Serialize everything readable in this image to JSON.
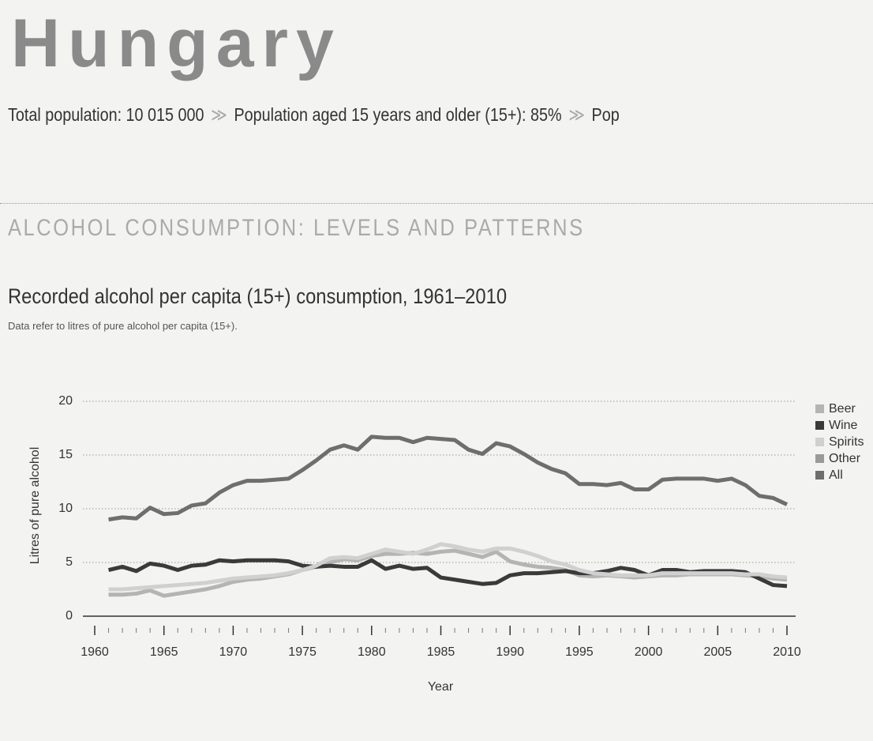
{
  "header": {
    "title": "Hungary",
    "stats": [
      "Total population: 10 015 000",
      "Population aged 15 years and older (15+): 85%",
      "Pop"
    ]
  },
  "section_title": "ALCOHOL CONSUMPTION: LEVELS AND PATTERNS",
  "chart_data": {
    "type": "line",
    "title": "Recorded alcohol per capita (15+) consumption, 1961–2010",
    "subtitle": "Data refer to litres of pure alcohol per capita (15+).",
    "x_label": "Year",
    "y_label": "Litres of pure alcohol",
    "x": [
      1961,
      1962,
      1963,
      1964,
      1965,
      1966,
      1967,
      1968,
      1969,
      1970,
      1971,
      1972,
      1973,
      1974,
      1975,
      1976,
      1977,
      1978,
      1979,
      1980,
      1981,
      1982,
      1983,
      1984,
      1985,
      1986,
      1987,
      1988,
      1989,
      1990,
      1991,
      1992,
      1993,
      1994,
      1995,
      1996,
      1997,
      1998,
      1999,
      2000,
      2001,
      2002,
      2003,
      2004,
      2005,
      2006,
      2007,
      2008,
      2009,
      2010
    ],
    "series": [
      {
        "name": "Beer",
        "color": "#b4b4b4",
        "values": [
          2.0,
          2.0,
          2.1,
          2.4,
          1.9,
          2.1,
          2.3,
          2.5,
          2.8,
          3.2,
          3.4,
          3.5,
          3.7,
          3.9,
          4.3,
          4.6,
          5.0,
          5.3,
          5.2,
          5.6,
          5.8,
          5.8,
          5.9,
          5.8,
          6.0,
          6.1,
          5.8,
          5.5,
          6.0,
          5.1,
          4.8,
          4.6,
          4.5,
          4.3,
          3.8,
          3.7,
          3.8,
          3.7,
          3.6,
          3.7,
          3.8,
          3.8,
          3.9,
          3.9,
          3.9,
          3.9,
          3.8,
          3.7,
          3.5,
          3.4
        ]
      },
      {
        "name": "Wine",
        "color": "#3a3a3a",
        "values": [
          4.3,
          4.6,
          4.2,
          4.9,
          4.7,
          4.3,
          4.7,
          4.8,
          5.2,
          5.1,
          5.2,
          5.2,
          5.2,
          5.1,
          4.7,
          4.6,
          4.7,
          4.6,
          4.6,
          5.2,
          4.4,
          4.7,
          4.4,
          4.5,
          3.6,
          3.4,
          3.2,
          3.0,
          3.1,
          3.8,
          4.0,
          4.0,
          4.1,
          4.2,
          4.0,
          4.0,
          4.2,
          4.5,
          4.3,
          3.8,
          4.3,
          4.3,
          4.1,
          4.2,
          4.2,
          4.2,
          4.1,
          3.5,
          2.9,
          2.8
        ]
      },
      {
        "name": "Spirits",
        "color": "#d0d0d0",
        "values": [
          2.5,
          2.5,
          2.6,
          2.7,
          2.8,
          2.9,
          3.0,
          3.1,
          3.3,
          3.5,
          3.6,
          3.7,
          3.8,
          4.0,
          4.3,
          4.7,
          5.4,
          5.5,
          5.4,
          5.8,
          6.2,
          6.0,
          5.8,
          6.2,
          6.7,
          6.5,
          6.2,
          6.0,
          6.3,
          6.3,
          6.0,
          5.6,
          5.1,
          4.8,
          4.3,
          4.0,
          3.9,
          3.8,
          3.8,
          3.8,
          4.0,
          4.0,
          4.0,
          4.0,
          4.0,
          4.0,
          3.9,
          3.9,
          3.7,
          3.6
        ]
      },
      {
        "name": "Other",
        "color": "#9a9a9a",
        "values": [
          null,
          null,
          null,
          null,
          null,
          null,
          null,
          null,
          null,
          null,
          null,
          null,
          null,
          null,
          null,
          null,
          null,
          null,
          null,
          null,
          null,
          null,
          null,
          null,
          null,
          null,
          null,
          null,
          null,
          null,
          null,
          null,
          null,
          null,
          null,
          null,
          null,
          null,
          null,
          null,
          null,
          null,
          null,
          null,
          null,
          null,
          null,
          null,
          null,
          null
        ]
      },
      {
        "name": "All",
        "color": "#6e6e6e",
        "values": [
          9.0,
          9.2,
          9.1,
          10.1,
          9.5,
          9.6,
          10.3,
          10.5,
          11.5,
          12.2,
          12.6,
          12.6,
          12.7,
          12.8,
          13.6,
          14.5,
          15.5,
          15.9,
          15.5,
          16.7,
          16.6,
          16.6,
          16.2,
          16.6,
          16.5,
          16.4,
          15.5,
          15.1,
          16.1,
          15.8,
          15.1,
          14.3,
          13.7,
          13.3,
          12.3,
          12.3,
          12.2,
          12.4,
          11.8,
          11.8,
          12.7,
          12.8,
          12.8,
          12.8,
          12.6,
          12.8,
          12.2,
          11.2,
          11.0,
          10.4
        ]
      }
    ],
    "xlim": [
      1960,
      2010
    ],
    "xticks": [
      1960,
      1965,
      1970,
      1975,
      1980,
      1985,
      1990,
      1995,
      2000,
      2005,
      2010
    ],
    "ylim": [
      0,
      20
    ],
    "yticks": [
      0,
      5,
      10,
      15,
      20
    ],
    "grid": true,
    "legend": "right"
  }
}
